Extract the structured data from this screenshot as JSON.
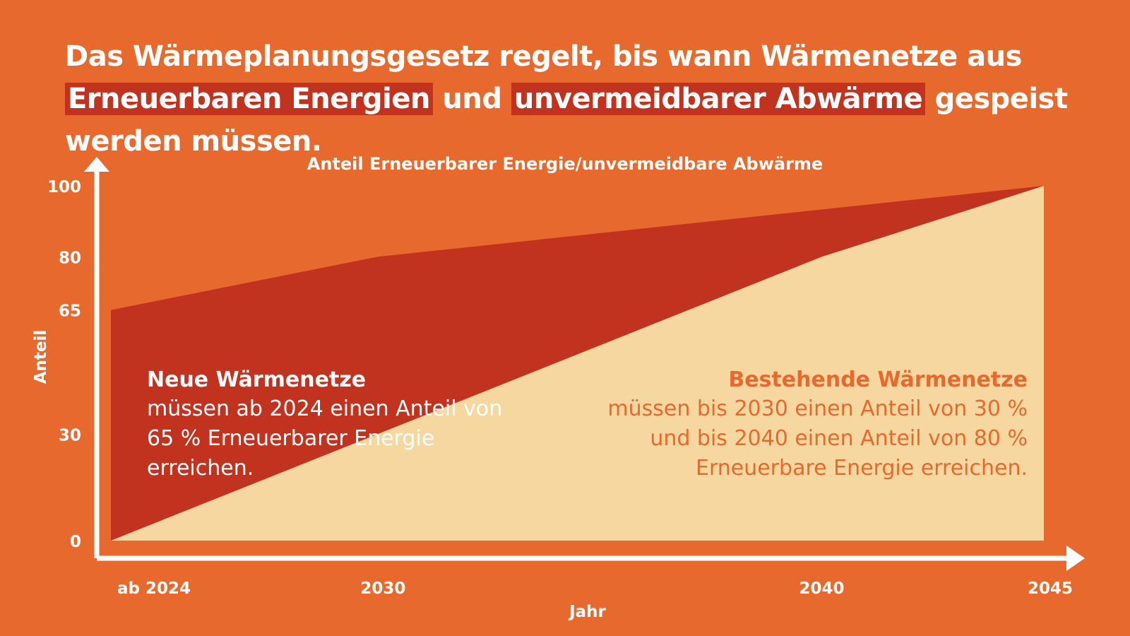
{
  "headline": {
    "part1": "Das Wärmeplanungsgesetz regelt, bis wann Wärmenetze aus ",
    "highlight1": "Erneuerbaren Energien",
    "part2": " und ",
    "highlight2": "unvermeidbarer Abwärme",
    "part3": " gespeist werden müssen."
  },
  "colors": {
    "background": "#E8692D",
    "dark_area": "#C1321F",
    "light_area": "#F6D7A0",
    "axis": "#ffffff",
    "highlight": "#C1321F"
  },
  "chart_data": {
    "type": "area",
    "title": "Anteil Erneuerbarer Energie/unvermeidbare Abwärme",
    "xlabel": "Jahr",
    "ylabel": "Anteil",
    "x_ticks": [
      "ab 2024",
      "2030",
      "2040",
      "2045"
    ],
    "x_tick_values": [
      2024,
      2030,
      2040,
      2045
    ],
    "y_ticks": [
      0,
      30,
      65,
      80,
      100
    ],
    "xlim": [
      2024,
      2045
    ],
    "ylim": [
      0,
      100
    ],
    "series": [
      {
        "name": "Neue Wärmenetze",
        "x": [
          2024,
          2030,
          2045
        ],
        "y": [
          65,
          80,
          100
        ]
      },
      {
        "name": "Bestehende Wärmenetze",
        "x": [
          2024,
          2030,
          2040,
          2045
        ],
        "y": [
          0,
          30,
          80,
          100
        ]
      }
    ]
  },
  "annotations": {
    "new_networks": {
      "title": "Neue Wärmenetze",
      "text": "müssen ab 2024 einen Anteil von 65 % Erneuerbarer Energie erreichen."
    },
    "existing_networks": {
      "title": "Bestehende Wärmenetze",
      "text": "müssen bis 2030 einen Anteil von 30 % und bis 2040 einen Anteil von 80 % Erneuerbare Energie erreichen."
    }
  }
}
